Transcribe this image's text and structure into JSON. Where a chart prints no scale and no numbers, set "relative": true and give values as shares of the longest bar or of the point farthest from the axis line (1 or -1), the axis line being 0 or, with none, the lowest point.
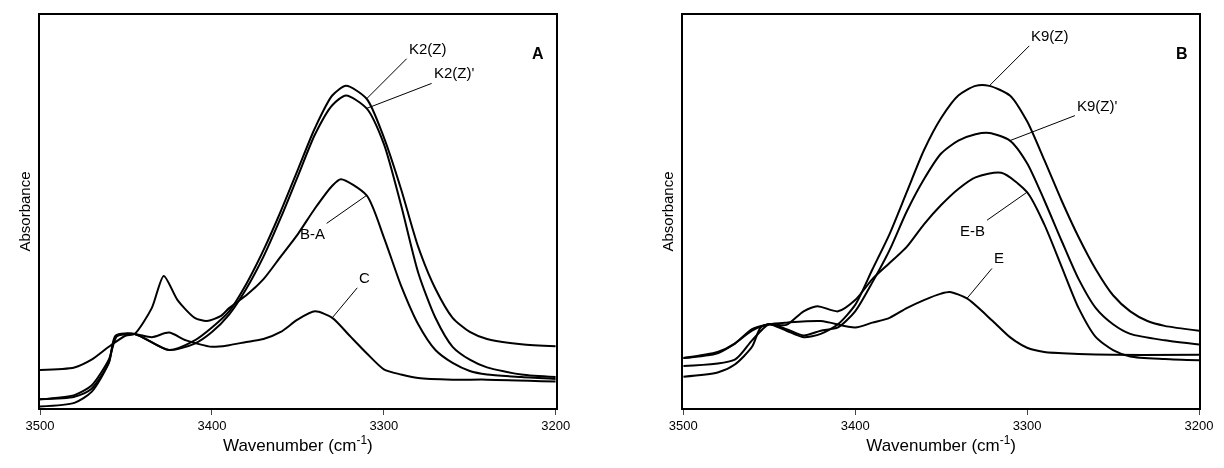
{
  "chart_data": [
    {
      "type": "line",
      "relative": true,
      "xlabel": "Wavenumber (cm$^{-1}$)",
      "ylabel": "Absorbance",
      "xlim": [
        3500,
        3200
      ],
      "xticks": [
        3500,
        3400,
        3300,
        3200
      ],
      "tick_labels": "x",
      "annotations": [
        "A"
      ],
      "series": [
        {
          "name": "K2(Z)",
          "color": "#000000",
          "x": [
            3500,
            3480,
            3470,
            3460,
            3456,
            3445,
            3425,
            3410,
            3400,
            3390,
            3380,
            3370,
            3360,
            3350,
            3340,
            3330,
            3322,
            3310,
            3300,
            3290,
            3280,
            3270,
            3260,
            3250,
            3240,
            3220,
            3200
          ],
          "values": [
            0.005,
            0.016,
            0.05,
            0.14,
            0.225,
            0.23,
            0.18,
            0.21,
            0.25,
            0.3,
            0.385,
            0.49,
            0.61,
            0.74,
            0.87,
            0.97,
            1.0,
            0.96,
            0.84,
            0.68,
            0.5,
            0.37,
            0.28,
            0.236,
            0.214,
            0.198,
            0.192
          ]
        },
        {
          "name": "K2(Z)'",
          "color": "#000000",
          "x": [
            3500,
            3480,
            3470,
            3460,
            3456,
            3445,
            3425,
            3410,
            3400,
            3390,
            3380,
            3370,
            3360,
            3350,
            3340,
            3330,
            3322,
            3310,
            3300,
            3290,
            3280,
            3270,
            3260,
            3250,
            3240,
            3220,
            3200
          ],
          "values": [
            0.027,
            0.035,
            0.06,
            0.14,
            0.22,
            0.23,
            0.18,
            0.2,
            0.236,
            0.29,
            0.37,
            0.47,
            0.59,
            0.72,
            0.85,
            0.94,
            0.97,
            0.93,
            0.82,
            0.63,
            0.42,
            0.28,
            0.19,
            0.15,
            0.126,
            0.104,
            0.096
          ]
        },
        {
          "name": "B-A",
          "color": "#000000",
          "x": [
            3500,
            3480,
            3470,
            3460,
            3450,
            3445,
            3435,
            3428,
            3420,
            3410,
            3403,
            3395,
            3390,
            3380,
            3370,
            3360,
            3350,
            3340,
            3330,
            3325,
            3310,
            3300,
            3290,
            3280,
            3270,
            3260,
            3250,
            3240,
            3220,
            3200
          ],
          "values": [
            0.118,
            0.126,
            0.15,
            0.19,
            0.225,
            0.23,
            0.31,
            0.41,
            0.335,
            0.28,
            0.27,
            0.285,
            0.31,
            0.35,
            0.4,
            0.47,
            0.54,
            0.62,
            0.69,
            0.71,
            0.66,
            0.53,
            0.38,
            0.26,
            0.18,
            0.14,
            0.115,
            0.104,
            0.096,
            0.09
          ]
        },
        {
          "name": "C",
          "color": "#000000",
          "x": [
            3500,
            3480,
            3470,
            3460,
            3455,
            3445,
            3435,
            3425,
            3415,
            3400,
            3390,
            3380,
            3370,
            3360,
            3350,
            3340,
            3330,
            3320,
            3310,
            3300,
            3290,
            3280,
            3260,
            3240,
            3200
          ],
          "values": [
            0.027,
            0.04,
            0.07,
            0.15,
            0.225,
            0.23,
            0.22,
            0.234,
            0.21,
            0.19,
            0.195,
            0.205,
            0.214,
            0.236,
            0.275,
            0.3,
            0.28,
            0.225,
            0.17,
            0.12,
            0.104,
            0.093,
            0.088,
            0.088,
            0.082
          ]
        }
      ]
    },
    {
      "type": "line",
      "relative": true,
      "xlabel": "Wavenumber (cm$^{-1}$)",
      "ylabel": "Absorbance",
      "xlim": [
        3500,
        3200
      ],
      "xticks": [
        3500,
        3400,
        3300,
        3200
      ],
      "tick_labels": "x",
      "annotations": [
        "B"
      ],
      "series": [
        {
          "name": "K9(Z)",
          "color": "#000000",
          "x": [
            3500,
            3480,
            3470,
            3460,
            3455,
            3450,
            3440,
            3430,
            3420,
            3410,
            3400,
            3390,
            3380,
            3370,
            3360,
            3350,
            3340,
            3330,
            3322,
            3310,
            3300,
            3290,
            3280,
            3270,
            3260,
            3250,
            3240,
            3230,
            3220,
            3200
          ],
          "values": [
            0.097,
            0.11,
            0.135,
            0.19,
            0.25,
            0.26,
            0.24,
            0.22,
            0.23,
            0.26,
            0.32,
            0.43,
            0.54,
            0.67,
            0.8,
            0.9,
            0.97,
            1.0,
            1.0,
            0.97,
            0.89,
            0.77,
            0.645,
            0.53,
            0.43,
            0.35,
            0.3,
            0.27,
            0.255,
            0.24
          ]
        },
        {
          "name": "K9(Z)'",
          "color": "#000000",
          "x": [
            3500,
            3470,
            3460,
            3450,
            3440,
            3430,
            3420,
            3410,
            3400,
            3390,
            3380,
            3370,
            3360,
            3350,
            3340,
            3330,
            3322,
            3310,
            3300,
            3290,
            3280,
            3270,
            3260,
            3250,
            3240,
            3220,
            3200
          ],
          "values": [
            0.13,
            0.15,
            0.21,
            0.26,
            0.245,
            0.225,
            0.24,
            0.25,
            0.3,
            0.39,
            0.49,
            0.61,
            0.71,
            0.79,
            0.83,
            0.85,
            0.854,
            0.83,
            0.76,
            0.645,
            0.52,
            0.4,
            0.31,
            0.26,
            0.23,
            0.21,
            0.197
          ]
        },
        {
          "name": "E-B",
          "color": "#000000",
          "x": [
            3500,
            3480,
            3470,
            3460,
            3450,
            3440,
            3430,
            3422,
            3410,
            3400,
            3390,
            3380,
            3370,
            3360,
            3350,
            3340,
            3330,
            3315,
            3300,
            3290,
            3280,
            3270,
            3260,
            3250,
            3240,
            3220,
            3200
          ],
          "values": [
            0.155,
            0.17,
            0.2,
            0.24,
            0.26,
            0.258,
            0.3,
            0.316,
            0.3,
            0.335,
            0.4,
            0.45,
            0.5,
            0.57,
            0.63,
            0.68,
            0.716,
            0.73,
            0.67,
            0.57,
            0.44,
            0.31,
            0.22,
            0.18,
            0.16,
            0.152,
            0.148
          ]
        },
        {
          "name": "E",
          "color": "#000000",
          "x": [
            3500,
            3480,
            3470,
            3460,
            3450,
            3440,
            3420,
            3400,
            3390,
            3380,
            3370,
            3360,
            3350,
            3345,
            3335,
            3320,
            3310,
            3300,
            3290,
            3270,
            3250,
            3200
          ],
          "values": [
            0.155,
            0.174,
            0.2,
            0.245,
            0.26,
            0.265,
            0.27,
            0.25,
            0.265,
            0.28,
            0.31,
            0.335,
            0.355,
            0.36,
            0.34,
            0.27,
            0.22,
            0.187,
            0.174,
            0.168,
            0.165,
            0.165
          ]
        }
      ]
    }
  ]
}
